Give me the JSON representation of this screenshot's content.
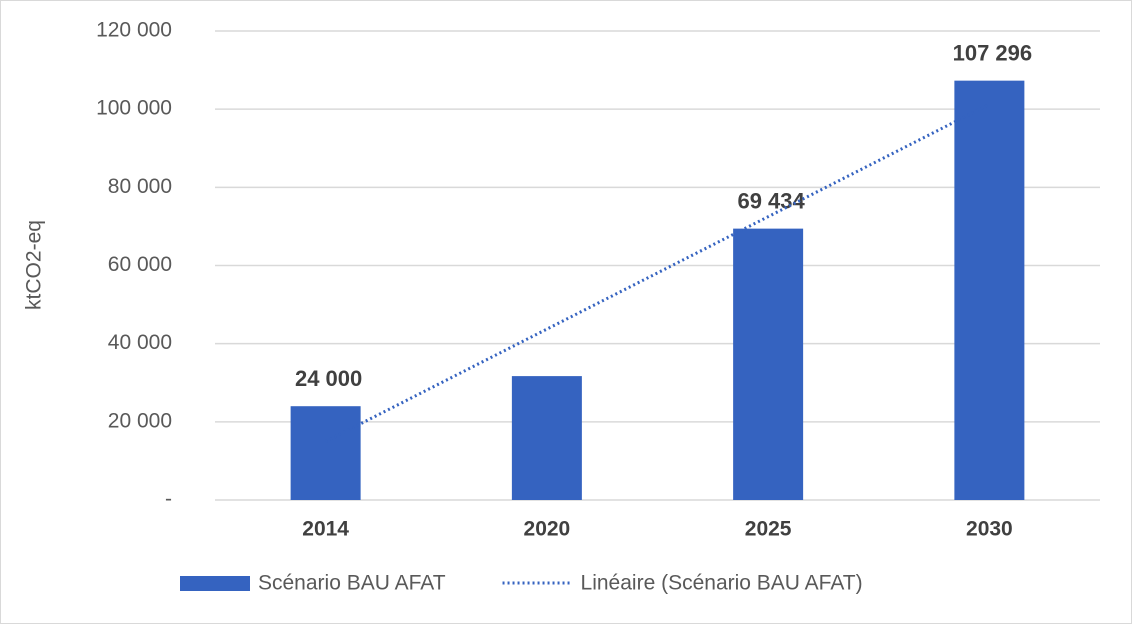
{
  "chart_data": {
    "type": "bar",
    "y_label": "ktCO2-eq",
    "categories": [
      "2014",
      "2020",
      "2025",
      "2030"
    ],
    "series": [
      {
        "name": "Scénario BAU AFAT",
        "type": "bar",
        "color": "#3563c0",
        "values": [
          24000,
          31700,
          69434,
          107296
        ],
        "value_labels": [
          "24 000",
          null,
          "69 434",
          "107 296"
        ]
      },
      {
        "name": "Linéaire (Scénario BAU AFAT)",
        "type": "line",
        "color": "#3563c0",
        "dotted": true,
        "values": [
          14964,
          43726,
          72488,
          101250
        ]
      }
    ],
    "ylim": [
      0,
      120000
    ],
    "yticks": [
      {
        "value": 0,
        "label": "-"
      },
      {
        "value": 20000,
        "label": "20 000"
      },
      {
        "value": 40000,
        "label": "40 000"
      },
      {
        "value": 60000,
        "label": "60 000"
      },
      {
        "value": 80000,
        "label": "80 000"
      },
      {
        "value": 100000,
        "label": "100 000"
      },
      {
        "value": 120000,
        "label": "120 000"
      }
    ],
    "grid": true,
    "legend": "bottom"
  }
}
